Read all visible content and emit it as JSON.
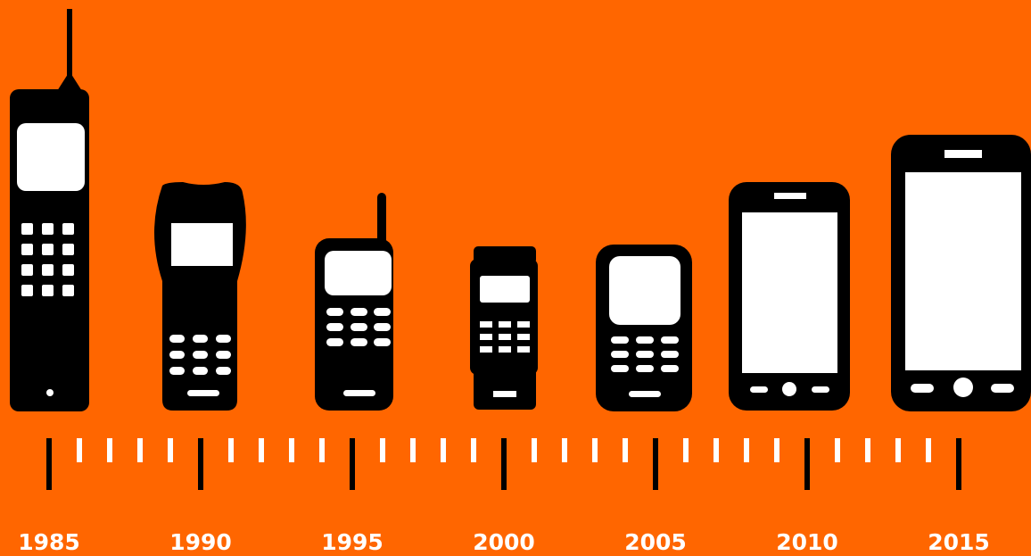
{
  "colors": {
    "background": "#FF6600",
    "phone": "#000000",
    "screen": "#FFFFFF",
    "year_label": "#FFFFFF"
  },
  "phones": [
    {
      "icon": "brick-phone-icon"
    },
    {
      "icon": "handheld-phone-icon"
    },
    {
      "icon": "antenna-phone-icon"
    },
    {
      "icon": "compact-phone-icon"
    },
    {
      "icon": "keypad-phone-icon"
    },
    {
      "icon": "smartphone-icon"
    },
    {
      "icon": "large-smartphone-icon"
    }
  ],
  "timeline": {
    "years": [
      "1985",
      "1990",
      "1995",
      "2000",
      "2005",
      "2010",
      "2015"
    ],
    "minor_ticks_between": 4
  }
}
